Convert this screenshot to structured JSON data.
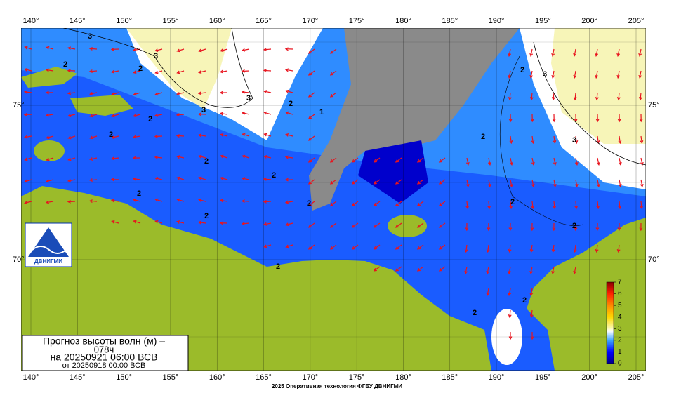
{
  "title": {
    "line1": "Прогноз высоты волн (м) –",
    "line2": "078ч",
    "line3": "на 20250921 06:00 ВСВ",
    "line4": "от 20250918 00:00 ВСВ"
  },
  "longitude_labels": [
    "140°",
    "145°",
    "150°",
    "155°",
    "160°",
    "165°",
    "170°",
    "175°",
    "180°",
    "185°",
    "190°",
    "195°",
    "200°",
    "205°"
  ],
  "latitude_labels": [
    "75°",
    "70°"
  ],
  "colorbar": {
    "ticks": [
      "0",
      "1",
      "2",
      "3",
      "4",
      "5",
      "6",
      "7"
    ]
  },
  "contour_labels": [
    "3",
    "3",
    "2",
    "2",
    "3",
    "3",
    "2",
    "1",
    "2",
    "2",
    "2",
    "2",
    "3",
    "2",
    "2",
    "2",
    "2",
    "2",
    "2",
    "2",
    "2",
    "2",
    "2",
    "3"
  ],
  "logo": "ДВНИГМИ",
  "footer": "2025 Оперативная технология ФГБУ ДВНИГМИ"
}
